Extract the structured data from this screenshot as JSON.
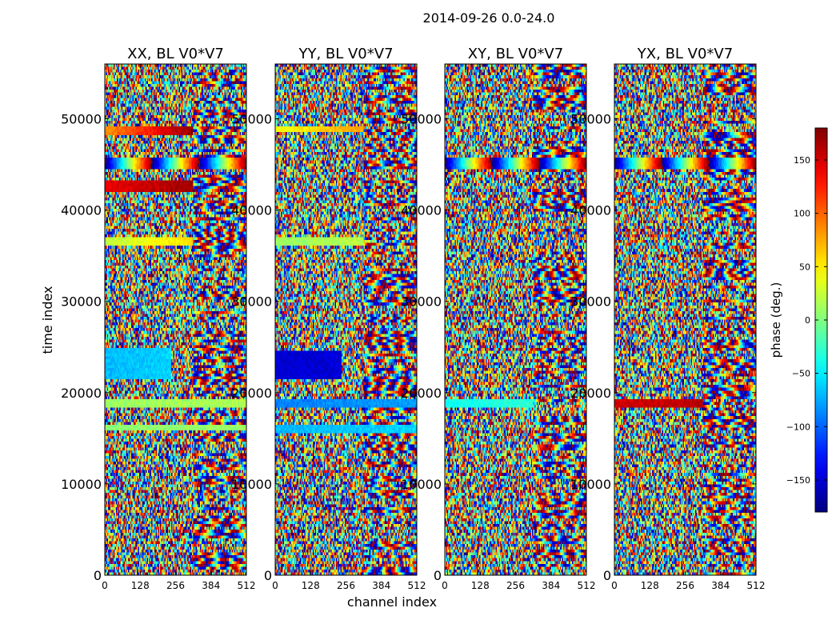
{
  "suptitle": "2014-09-26 0.0-24.0",
  "chart_data": {
    "type": "heatmap",
    "description": "Phase vs channel and time for one baseline, four polarization products",
    "xlabel": "channel index",
    "ylabel": "time index",
    "xlim": [
      0,
      512
    ],
    "ylim": [
      0,
      56000
    ],
    "x_ticks": [
      0,
      128,
      256,
      384,
      512
    ],
    "y_ticks": [
      0,
      10000,
      20000,
      30000,
      40000,
      50000
    ],
    "colorbar": {
      "label": "phase (deg.)",
      "range": [
        -180,
        180
      ],
      "ticks": [
        -150,
        -100,
        -50,
        0,
        50,
        100,
        150
      ],
      "tick_labels": [
        "−150",
        "−100",
        "−50",
        "0",
        "50",
        "100",
        "150"
      ],
      "colormap": "jet"
    },
    "panels": [
      {
        "title": "XX, BL V0*V7",
        "coherent_bands": [
          {
            "t": [
              48300,
              49200
            ],
            "ch": [
              0,
              320
            ],
            "phase_start": 80,
            "phase_end": 175
          },
          {
            "t": [
              42000,
              43200
            ],
            "ch": [
              0,
              320
            ],
            "phase_start": 140,
            "phase_end": 170
          },
          {
            "t": [
              44500,
              45800
            ],
            "ch": [
              0,
              512
            ],
            "phase_start": -180,
            "phase_end": 900
          },
          {
            "t": [
              36200,
              36900
            ],
            "ch": [
              0,
              320
            ],
            "phase_start": 20,
            "phase_end": 60
          },
          {
            "t": [
              21500,
              24800
            ],
            "ch": [
              0,
              240
            ],
            "phase_start": -70,
            "phase_end": -60
          },
          {
            "t": [
              18400,
              19400
            ],
            "ch": [
              0,
              512
            ],
            "phase_start": 10,
            "phase_end": 15
          },
          {
            "t": [
              15800,
              16600
            ],
            "ch": [
              0,
              512
            ],
            "phase_start": 5,
            "phase_end": 10
          }
        ]
      },
      {
        "title": "YY, BL V0*V7",
        "coherent_bands": [
          {
            "t": [
              48400,
              49200
            ],
            "ch": [
              0,
              320
            ],
            "phase_start": 40,
            "phase_end": 80
          },
          {
            "t": [
              36200,
              36900
            ],
            "ch": [
              0,
              320
            ],
            "phase_start": 10,
            "phase_end": 20
          },
          {
            "t": [
              21500,
              24500
            ],
            "ch": [
              0,
              240
            ],
            "phase_start": -150,
            "phase_end": -150
          },
          {
            "t": [
              18400,
              19400
            ],
            "ch": [
              0,
              512
            ],
            "phase_start": -90,
            "phase_end": -80
          },
          {
            "t": [
              15600,
              16400
            ],
            "ch": [
              0,
              512
            ],
            "phase_start": -70,
            "phase_end": -60
          }
        ]
      },
      {
        "title": "XY, BL V0*V7",
        "coherent_bands": [
          {
            "t": [
              44500,
              45800
            ],
            "ch": [
              0,
              512
            ],
            "phase_start": -180,
            "phase_end": 900
          },
          {
            "t": [
              18400,
              19400
            ],
            "ch": [
              0,
              320
            ],
            "phase_start": -40,
            "phase_end": -30
          }
        ]
      },
      {
        "title": "YX, BL V0*V7",
        "coherent_bands": [
          {
            "t": [
              44500,
              45800
            ],
            "ch": [
              0,
              512
            ],
            "phase_start": -180,
            "phase_end": 900
          },
          {
            "t": [
              18400,
              19400
            ],
            "ch": [
              0,
              320
            ],
            "phase_start": 150,
            "phase_end": 160
          }
        ]
      }
    ]
  }
}
